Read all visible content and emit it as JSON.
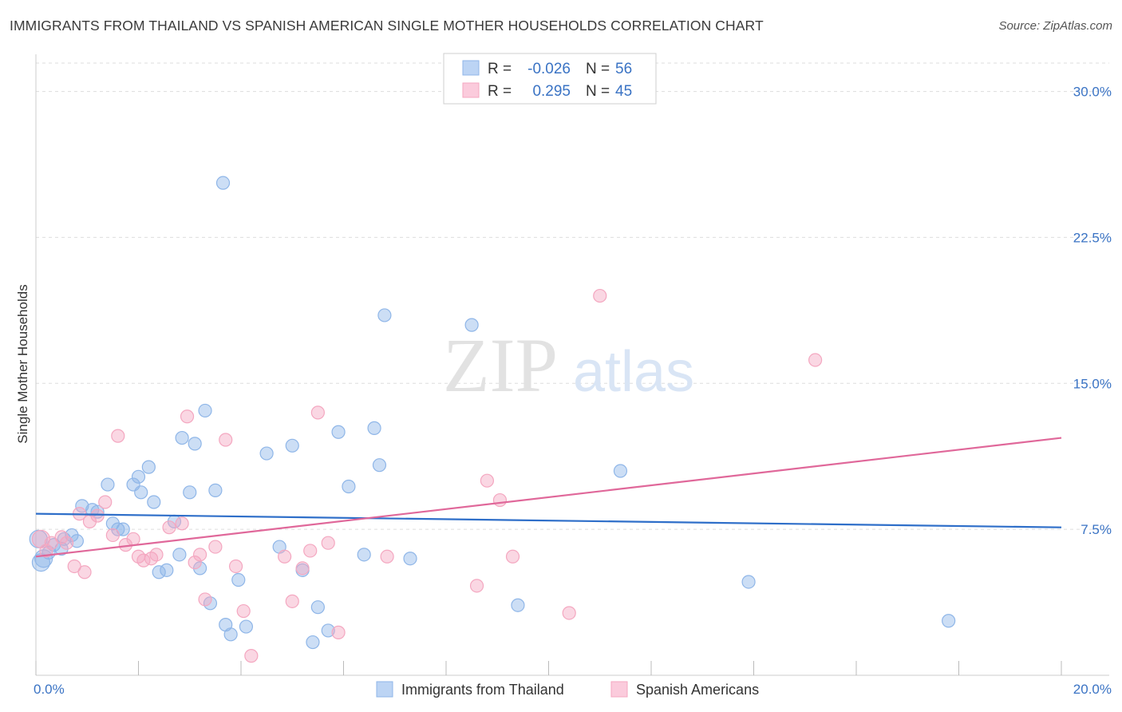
{
  "chart_data": {
    "type": "scatter",
    "title": "IMMIGRANTS FROM THAILAND VS SPANISH AMERICAN SINGLE MOTHER HOUSEHOLDS CORRELATION CHART",
    "source": "Source: ZipAtlas.com",
    "watermark": "ZIPatlas",
    "ylabel": "Single Mother Households",
    "xlim": [
      0,
      20
    ],
    "ylim": [
      0,
      31.5
    ],
    "y_ticks": [
      {
        "value": 7.5,
        "label": "7.5%"
      },
      {
        "value": 15.0,
        "label": "15.0%"
      },
      {
        "value": 22.5,
        "label": "22.5%"
      },
      {
        "value": 30.0,
        "label": "30.0%"
      }
    ],
    "x_tick_labels": {
      "min": "0.0%",
      "max": "20.0%"
    },
    "legend": {
      "rows": [
        {
          "r_label": "R = ",
          "r_value": "-0.026",
          "n_label": "N = ",
          "n_value": "56"
        },
        {
          "r_label": "R = ",
          "r_value": "0.295",
          "n_label": "N = ",
          "n_value": "45"
        }
      ]
    },
    "series": [
      {
        "name": "Immigrants from Thailand",
        "color": "#8fb6e8",
        "line_color": "#2f6fc9",
        "trend": {
          "x": [
            0,
            20
          ],
          "y": [
            8.3,
            7.6
          ]
        },
        "points": [
          [
            0.05,
            7.0
          ],
          [
            0.15,
            6.0
          ],
          [
            0.25,
            6.3
          ],
          [
            0.35,
            6.7
          ],
          [
            0.5,
            6.5
          ],
          [
            0.55,
            7.0
          ],
          [
            0.7,
            7.2
          ],
          [
            0.8,
            6.9
          ],
          [
            0.9,
            8.7
          ],
          [
            1.1,
            8.5
          ],
          [
            1.2,
            8.4
          ],
          [
            1.4,
            9.8
          ],
          [
            1.5,
            7.8
          ],
          [
            1.6,
            7.5
          ],
          [
            1.7,
            7.5
          ],
          [
            1.9,
            9.8
          ],
          [
            2.0,
            10.2
          ],
          [
            2.05,
            9.4
          ],
          [
            2.2,
            10.7
          ],
          [
            2.3,
            8.9
          ],
          [
            2.4,
            5.3
          ],
          [
            2.55,
            5.4
          ],
          [
            2.7,
            7.9
          ],
          [
            2.8,
            6.2
          ],
          [
            2.85,
            12.2
          ],
          [
            3.0,
            9.4
          ],
          [
            3.1,
            11.9
          ],
          [
            3.2,
            5.5
          ],
          [
            3.3,
            13.6
          ],
          [
            3.4,
            3.7
          ],
          [
            3.5,
            9.5
          ],
          [
            3.65,
            25.3
          ],
          [
            3.7,
            2.6
          ],
          [
            3.8,
            2.1
          ],
          [
            3.95,
            4.9
          ],
          [
            4.1,
            2.5
          ],
          [
            4.5,
            11.4
          ],
          [
            4.75,
            6.6
          ],
          [
            5.0,
            11.8
          ],
          [
            5.2,
            5.4
          ],
          [
            5.4,
            1.7
          ],
          [
            5.5,
            3.5
          ],
          [
            5.7,
            2.3
          ],
          [
            5.9,
            12.5
          ],
          [
            6.1,
            9.7
          ],
          [
            6.4,
            6.2
          ],
          [
            6.6,
            12.7
          ],
          [
            6.7,
            10.8
          ],
          [
            6.8,
            18.5
          ],
          [
            7.3,
            6.0
          ],
          [
            8.5,
            18.0
          ],
          [
            9.4,
            3.6
          ],
          [
            11.4,
            10.5
          ],
          [
            13.9,
            4.8
          ],
          [
            17.8,
            2.8
          ],
          [
            0.1,
            5.8
          ]
        ]
      },
      {
        "name": "Spanish Americans",
        "color": "#f4a7c0",
        "line_color": "#e0689a",
        "trend": {
          "x": [
            0,
            20
          ],
          "y": [
            6.1,
            12.2
          ]
        },
        "points": [
          [
            0.1,
            7.0
          ],
          [
            0.3,
            6.8
          ],
          [
            0.5,
            7.1
          ],
          [
            0.6,
            6.8
          ],
          [
            0.75,
            5.6
          ],
          [
            0.85,
            8.3
          ],
          [
            0.95,
            5.3
          ],
          [
            1.05,
            7.9
          ],
          [
            1.2,
            8.2
          ],
          [
            1.35,
            8.9
          ],
          [
            1.5,
            7.2
          ],
          [
            1.6,
            12.3
          ],
          [
            1.75,
            6.7
          ],
          [
            1.9,
            7.0
          ],
          [
            2.0,
            6.1
          ],
          [
            2.1,
            5.9
          ],
          [
            2.25,
            6.0
          ],
          [
            2.35,
            6.2
          ],
          [
            2.6,
            7.6
          ],
          [
            2.85,
            7.8
          ],
          [
            2.95,
            13.3
          ],
          [
            3.1,
            5.8
          ],
          [
            3.2,
            6.2
          ],
          [
            3.3,
            3.9
          ],
          [
            3.5,
            6.6
          ],
          [
            3.7,
            12.1
          ],
          [
            3.9,
            5.6
          ],
          [
            4.05,
            3.3
          ],
          [
            4.2,
            1.0
          ],
          [
            4.85,
            6.1
          ],
          [
            5.0,
            3.8
          ],
          [
            5.2,
            5.5
          ],
          [
            5.35,
            6.4
          ],
          [
            5.5,
            13.5
          ],
          [
            5.7,
            6.8
          ],
          [
            5.9,
            2.2
          ],
          [
            6.85,
            6.1
          ],
          [
            8.6,
            4.6
          ],
          [
            8.8,
            10.0
          ],
          [
            9.05,
            9.0
          ],
          [
            9.3,
            6.1
          ],
          [
            10.4,
            3.2
          ],
          [
            11.0,
            19.5
          ],
          [
            15.2,
            16.2
          ],
          [
            0.2,
            6.4
          ]
        ]
      }
    ]
  }
}
